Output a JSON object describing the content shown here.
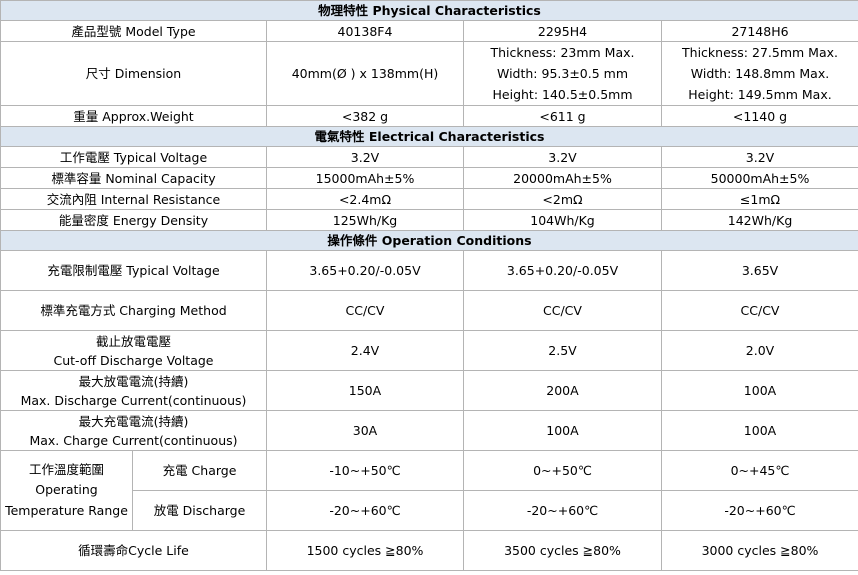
{
  "physical": {
    "header": "物理特性 Physical Characteristics",
    "model_label": "產品型號 Model Type",
    "models": [
      "40138F4",
      "2295H4",
      "27148H6"
    ],
    "dimension_label": "尺寸 Dimension",
    "dimension_1": "40mm(Ø ) x 138mm(H)",
    "dimension_2": [
      "Thickness: 23mm Max.",
      "Width: 95.3±0.5 mm",
      "Height: 140.5±0.5mm"
    ],
    "dimension_3": [
      "Thickness: 27.5mm Max.",
      "Width: 148.8mm Max.",
      "Height: 149.5mm Max."
    ],
    "weight_label": "重量 Approx.Weight",
    "weights": [
      "<382 g",
      "<611 g",
      "<1140 g"
    ]
  },
  "electrical": {
    "header": "電氣特性 Electrical Characteristics",
    "voltage_label": "工作電壓 Typical Voltage",
    "voltages": [
      "3.2V",
      "3.2V",
      "3.2V"
    ],
    "capacity_label": "標準容量 Nominal Capacity",
    "capacities": [
      "15000mAh±5%",
      "20000mAh±5%",
      "50000mAh±5%"
    ],
    "resistance_label": "交流內阻 Internal Resistance",
    "resistances": [
      "<2.4mΩ",
      "<2mΩ",
      "≤1mΩ"
    ],
    "density_label": "能量密度 Energy Density",
    "densities": [
      "125Wh/Kg",
      "104Wh/Kg",
      "142Wh/Kg"
    ]
  },
  "operation": {
    "header": "操作條件 Operation Conditions",
    "charge_voltage_label": "充電限制電壓 Typical Voltage",
    "charge_voltages": [
      "3.65+0.20/-0.05V",
      "3.65+0.20/-0.05V",
      "3.65V"
    ],
    "method_label": "標準充電方式 Charging Method",
    "methods": [
      "CC/CV",
      "CC/CV",
      "CC/CV"
    ],
    "cutoff_label": [
      "截止放電電壓",
      "Cut-off Discharge Voltage"
    ],
    "cutoffs": [
      "2.4V",
      "2.5V",
      "2.0V"
    ],
    "max_discharge_label": [
      "最大放電電流(持續)",
      "Max. Discharge Current(continuous)"
    ],
    "max_discharges": [
      "150A",
      "200A",
      "100A"
    ],
    "max_charge_label": [
      "最大充電電流(持續)",
      "Max. Charge Current(continuous)"
    ],
    "max_charges": [
      "30A",
      "100A",
      "100A"
    ],
    "temp_label": [
      "工作溫度範圍",
      "Operating",
      "Temperature Range"
    ],
    "charge_temp_label": "充電 Charge",
    "charge_temps": [
      "-10~+50℃",
      "0~+50℃",
      "0~+45℃"
    ],
    "discharge_temp_label": "放電 Discharge",
    "discharge_temps": [
      "-20~+60℃",
      "-20~+60℃",
      "-20~+60℃"
    ],
    "cycle_label": "循環壽命Cycle Life",
    "cycles": [
      "1500 cycles ≧80%",
      "3500 cycles ≧80%",
      "3000 cycles ≧80%"
    ]
  }
}
